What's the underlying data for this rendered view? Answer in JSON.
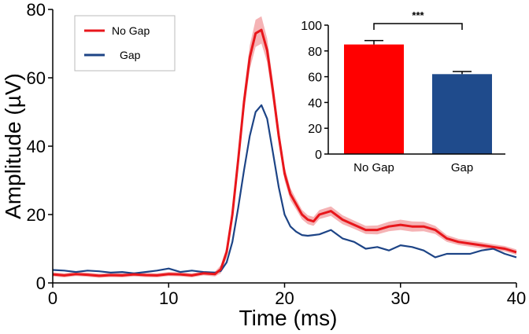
{
  "chart_data": [
    {
      "type": "line",
      "title": "",
      "xlabel": "Time (ms)",
      "ylabel": "Amplitude (µV)",
      "xlim": [
        0,
        40
      ],
      "ylim": [
        0,
        80
      ],
      "xticks": [
        0,
        10,
        20,
        30,
        40
      ],
      "yticks": [
        0,
        20,
        40,
        60,
        80
      ],
      "grid": false,
      "legend_position": "top-left",
      "series": [
        {
          "name": "No Gap",
          "color": "#e8161b",
          "band_color": "#f2a0a3",
          "x": [
            0,
            1,
            2,
            3,
            4,
            5,
            6,
            7,
            8,
            9,
            10,
            11,
            12,
            13,
            14,
            14.5,
            15,
            15.5,
            16,
            16.5,
            17,
            17.5,
            18,
            18.5,
            19,
            19.5,
            20,
            20.5,
            21,
            21.5,
            22,
            22.5,
            23,
            24,
            25,
            26,
            27,
            28,
            29,
            30,
            31,
            32,
            33,
            34,
            35,
            36,
            37,
            38,
            39,
            40
          ],
          "values": [
            2.5,
            2.2,
            2.6,
            2.4,
            2.1,
            2.3,
            2.2,
            2.5,
            2.3,
            2.2,
            2.6,
            2.5,
            2.2,
            2.8,
            2.6,
            4,
            9,
            20,
            36,
            53,
            66,
            73,
            74,
            68,
            56,
            43,
            32,
            26,
            23,
            20,
            18.5,
            18,
            20,
            21,
            18.5,
            17,
            15.5,
            15.5,
            16.5,
            17,
            16.5,
            16.5,
            15.5,
            13,
            12,
            11.5,
            11,
            10.5,
            10,
            9
          ],
          "band_half_width": [
            0.6,
            0.6,
            0.6,
            0.6,
            0.6,
            0.6,
            0.6,
            0.6,
            0.6,
            0.6,
            0.6,
            0.6,
            0.6,
            0.6,
            0.7,
            1.2,
            1.5,
            2,
            2.5,
            3,
            3.5,
            4,
            4,
            3.5,
            3,
            2.5,
            2,
            1.8,
            1.5,
            1.4,
            1.3,
            1.3,
            1.3,
            1.4,
            1.3,
            1.2,
            1.2,
            1.3,
            1.4,
            1.5,
            1.5,
            1.4,
            1.2,
            1,
            0.9,
            0.9,
            0.9,
            0.8,
            0.8,
            0.8
          ]
        },
        {
          "name": "Gap",
          "color": "#1d4486",
          "x": [
            0,
            1,
            2,
            3,
            4,
            5,
            6,
            7,
            8,
            9,
            10,
            11,
            12,
            13,
            14,
            14.5,
            15,
            15.5,
            16,
            16.5,
            17,
            17.5,
            18,
            18.5,
            19,
            19.5,
            20,
            20.5,
            21,
            21.5,
            22,
            22.5,
            23,
            24,
            25,
            26,
            27,
            28,
            29,
            30,
            31,
            32,
            33,
            34,
            35,
            36,
            37,
            38,
            39,
            40
          ],
          "values": [
            3.8,
            3.6,
            3.2,
            3.6,
            3.4,
            3,
            3.2,
            2.8,
            3.2,
            3.6,
            4.2,
            3.2,
            3.6,
            3.2,
            3,
            3.5,
            6,
            12,
            22,
            33,
            43,
            50,
            52,
            48,
            38,
            28,
            20,
            16.5,
            15,
            14,
            13.8,
            14,
            14.2,
            15.5,
            13,
            12,
            10,
            10.5,
            9.5,
            11,
            10.5,
            9.5,
            7.5,
            8.5,
            8.5,
            8.5,
            9.5,
            10,
            8.5,
            7.5
          ]
        }
      ],
      "legend": [
        "No Gap",
        "Gap"
      ]
    },
    {
      "type": "bar",
      "categories": [
        "No Gap",
        "Gap"
      ],
      "values": [
        85,
        62
      ],
      "errors": [
        3,
        2
      ],
      "colors": [
        "#ff0000",
        "#1f4b8c"
      ],
      "ylim": [
        0,
        100
      ],
      "yticks": [
        0,
        20,
        40,
        60,
        80,
        100
      ],
      "significance": {
        "between": [
          "No Gap",
          "Gap"
        ],
        "label": "***"
      }
    }
  ]
}
